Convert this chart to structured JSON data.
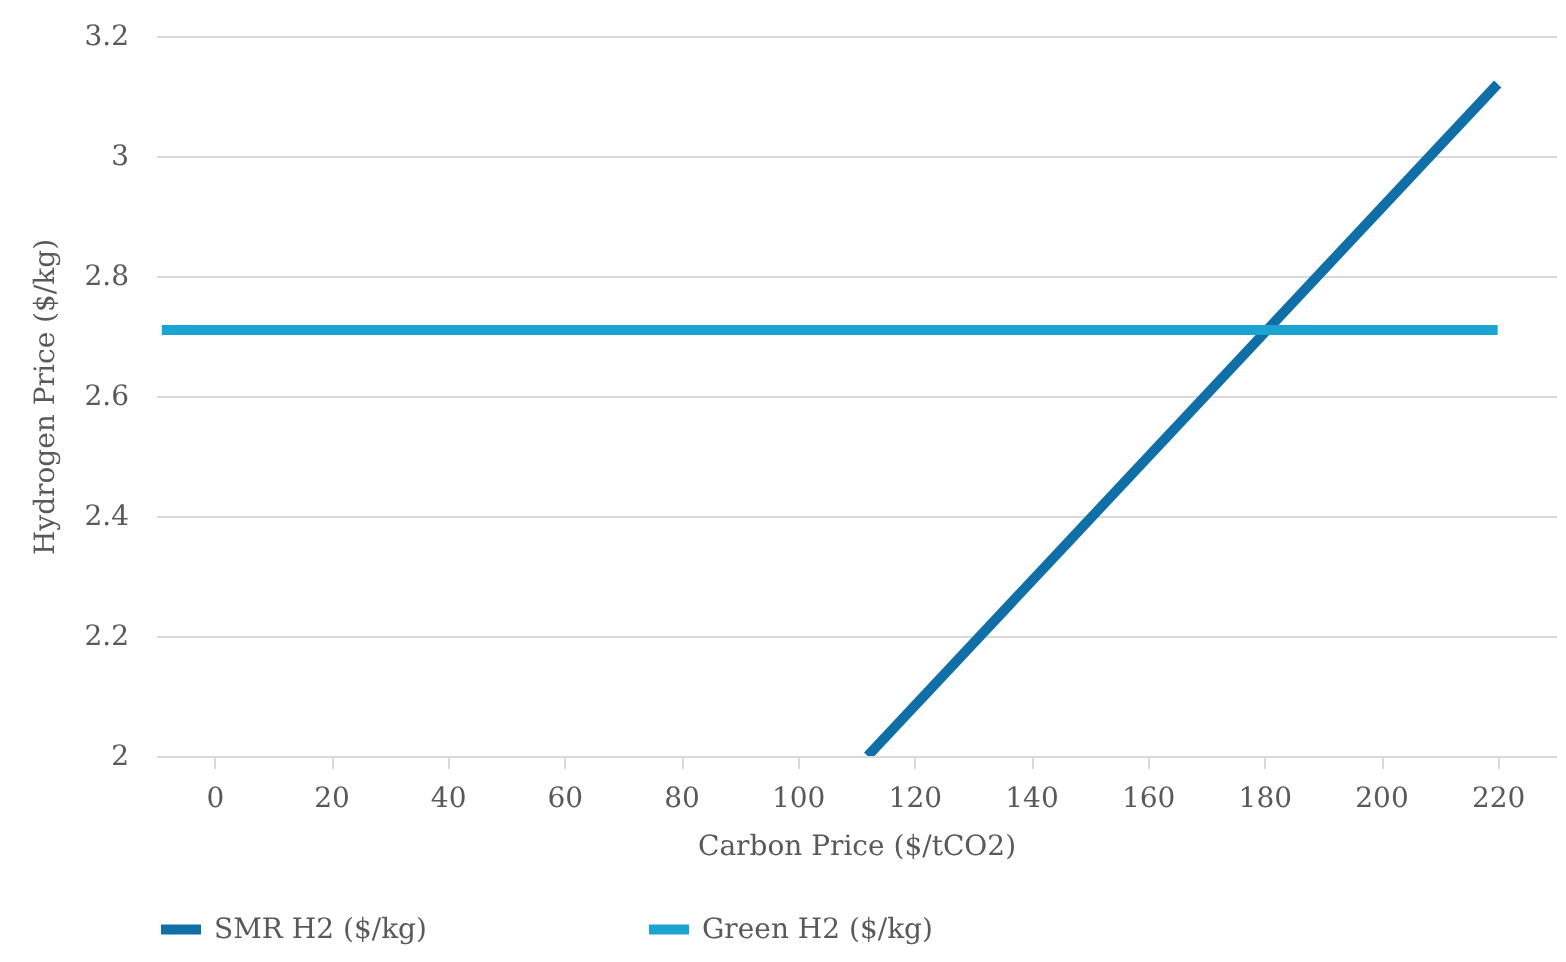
{
  "chart_data": {
    "type": "line",
    "xlabel": "Carbon Price ($/tCO2)",
    "ylabel": "Hydrogen Price ($/kg)",
    "xlim": [
      -10,
      230
    ],
    "xticks": [
      0,
      20,
      40,
      60,
      80,
      100,
      120,
      140,
      160,
      180,
      200,
      220
    ],
    "ylim": [
      2,
      3.2
    ],
    "yticks": [
      2,
      2.2,
      2.4,
      2.6,
      2.8,
      3,
      3.2
    ],
    "grid": "y",
    "legend": "bottom",
    "marker": "none",
    "line_style": "solid",
    "series": [
      {
        "name": "SMR H2 ($/kg)",
        "color": "#0f6fa6",
        "x": [
          112,
          220
        ],
        "values": [
          2,
          3.12
        ]
      },
      {
        "name": "Green H2 ($/kg)",
        "color": "#1ba3d1",
        "x": [
          -9,
          220
        ],
        "values": [
          2.71,
          2.71
        ]
      }
    ]
  }
}
